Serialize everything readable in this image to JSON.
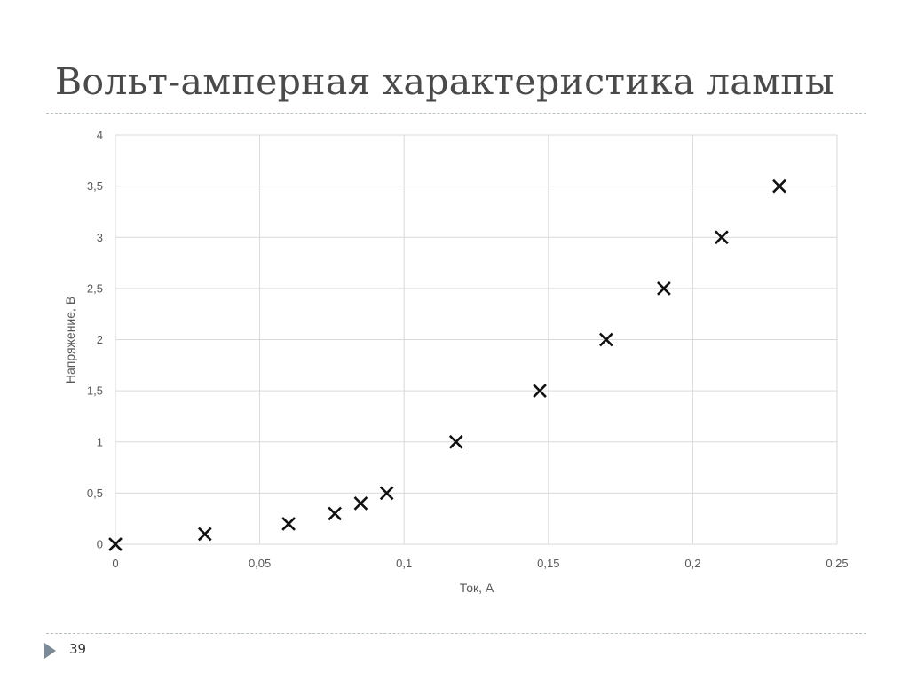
{
  "slide": {
    "title": "Вольт-амперная характеристика лампы",
    "page_number": "39"
  },
  "chart_data": {
    "type": "scatter",
    "title": "",
    "xlabel": "Ток, А",
    "ylabel": "Напряжение, В",
    "xlim": [
      0,
      0.25
    ],
    "ylim": [
      0,
      4
    ],
    "x_ticks": [
      0,
      0.05,
      0.1,
      0.15,
      0.2,
      0.25
    ],
    "y_ticks": [
      0,
      0.5,
      1,
      1.5,
      2,
      2.5,
      3,
      3.5,
      4
    ],
    "x_tick_labels": [
      "0",
      "0,05",
      "0,1",
      "0,15",
      "0,2",
      "0,25"
    ],
    "y_tick_labels": [
      "0",
      "0,5",
      "1",
      "1,5",
      "2",
      "2,5",
      "3",
      "3,5",
      "4"
    ],
    "grid": true,
    "marker": "x",
    "points": [
      {
        "x": 0,
        "y": 0
      },
      {
        "x": 0.031,
        "y": 0.1
      },
      {
        "x": 0.06,
        "y": 0.2
      },
      {
        "x": 0.076,
        "y": 0.3
      },
      {
        "x": 0.085,
        "y": 0.4
      },
      {
        "x": 0.094,
        "y": 0.5
      },
      {
        "x": 0.118,
        "y": 1
      },
      {
        "x": 0.147,
        "y": 1.5
      },
      {
        "x": 0.17,
        "y": 2
      },
      {
        "x": 0.19,
        "y": 2.5
      },
      {
        "x": 0.21,
        "y": 3
      },
      {
        "x": 0.23,
        "y": 3.5
      }
    ]
  },
  "colors": {
    "grid": "#d9d9d9",
    "marker": "#111111",
    "tick_text": "#595959",
    "divider": "#b9c2c2",
    "arrow": "#7d8b99"
  }
}
